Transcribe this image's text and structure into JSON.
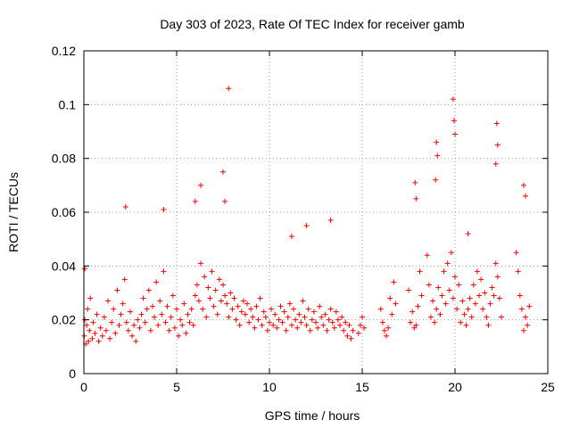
{
  "chart_data": {
    "type": "scatter",
    "title": "Day 303 of 2023, Rate Of TEC Index for receiver gamb",
    "xlabel": "GPS time / hours",
    "ylabel": "ROTI / TECUs",
    "xlim": [
      0,
      25
    ],
    "ylim": [
      0,
      0.12
    ],
    "x_ticks": [
      "0",
      "5",
      "10",
      "15",
      "20",
      "25"
    ],
    "y_ticks": [
      "0",
      "0.02",
      "0.04",
      "0.06",
      "0.08",
      "0.1",
      "0.12"
    ],
    "grid": true,
    "legend": "none",
    "marker": "+",
    "marker_color": "#ff0000",
    "series": [
      {
        "x": [
          0.02,
          0.05,
          0.1,
          0.15,
          0.2,
          0.25,
          0.3,
          0.35,
          0.45,
          0.5,
          0.6,
          0.7,
          0.8,
          0.9,
          1.0,
          1.1,
          1.2,
          1.3,
          1.4,
          1.5,
          1.6,
          1.7,
          1.8,
          1.9,
          2.0,
          2.1,
          2.2,
          2.3,
          2.4,
          2.5,
          2.6,
          2.7,
          2.8,
          2.9,
          3.0,
          3.1,
          3.2,
          3.3,
          3.4,
          3.5,
          3.6,
          3.7,
          3.8,
          3.9,
          4.0,
          4.1,
          4.2,
          4.3,
          4.4,
          4.5,
          4.6,
          4.7,
          4.8,
          4.9,
          5.0,
          5.1,
          5.2,
          5.3,
          5.4,
          5.5,
          5.6,
          5.7,
          5.8,
          5.9,
          6.0,
          6.1,
          6.2,
          6.3,
          6.4,
          6.5,
          6.6,
          6.7,
          6.8,
          6.9,
          7.0,
          7.1,
          7.2,
          7.3,
          7.4,
          7.5,
          7.6,
          7.7,
          7.8,
          7.9,
          8.0,
          8.1,
          8.2,
          8.3,
          8.4,
          8.5,
          8.6,
          8.7,
          8.8,
          8.9,
          9.0,
          9.1,
          9.2,
          9.3,
          9.4,
          9.5,
          9.6,
          9.7,
          9.8,
          9.9,
          10.0,
          10.1,
          10.2,
          10.3,
          10.4,
          10.5,
          10.6,
          10.7,
          10.8,
          10.9,
          11.0,
          11.1,
          11.2,
          11.3,
          11.4,
          11.5,
          11.6,
          11.7,
          11.8,
          11.9,
          12.0,
          12.1,
          12.2,
          12.3,
          12.4,
          12.5,
          12.6,
          12.7,
          12.8,
          12.9,
          13.0,
          13.1,
          13.2,
          13.3,
          13.4,
          13.5,
          13.6,
          13.7,
          13.8,
          13.9,
          14.0,
          14.1,
          14.2,
          14.3,
          14.4,
          14.5,
          14.8,
          14.9,
          15.0,
          15.1,
          16.0,
          16.1,
          16.2,
          16.3,
          16.4,
          16.5,
          16.6,
          16.7,
          16.8,
          17.5,
          17.6,
          17.7,
          17.8,
          17.9,
          18.0,
          18.1,
          18.2,
          18.5,
          18.6,
          18.7,
          18.8,
          18.9,
          19.0,
          19.1,
          19.2,
          19.3,
          19.4,
          19.5,
          19.6,
          19.7,
          19.8,
          19.9,
          20.0,
          20.1,
          20.2,
          20.3,
          20.4,
          20.5,
          20.6,
          20.7,
          20.8,
          20.9,
          21.0,
          21.1,
          21.2,
          21.3,
          21.4,
          21.5,
          21.6,
          21.7,
          21.8,
          21.9,
          22.0,
          22.1,
          22.2,
          22.3,
          22.4,
          22.5,
          23.3,
          23.4,
          23.5,
          23.6,
          23.7,
          23.8,
          23.9,
          24.0,
          7.8,
          7.5,
          7.6,
          19.9,
          19.95,
          20.0,
          19.0,
          19.05,
          22.25,
          22.3,
          22.2,
          18.95,
          13.3,
          6.0,
          4.3,
          2.25,
          23.7,
          23.8,
          17.85,
          17.9,
          20.7,
          0.05,
          6.3,
          11.2,
          12.0
        ],
        "y": [
          0.014,
          0.02,
          0.011,
          0.018,
          0.024,
          0.012,
          0.016,
          0.028,
          0.013,
          0.019,
          0.015,
          0.022,
          0.012,
          0.017,
          0.014,
          0.021,
          0.016,
          0.027,
          0.013,
          0.019,
          0.024,
          0.015,
          0.031,
          0.018,
          0.022,
          0.026,
          0.035,
          0.019,
          0.016,
          0.023,
          0.014,
          0.018,
          0.012,
          0.02,
          0.017,
          0.022,
          0.028,
          0.019,
          0.024,
          0.031,
          0.016,
          0.025,
          0.021,
          0.034,
          0.018,
          0.027,
          0.022,
          0.038,
          0.019,
          0.025,
          0.016,
          0.021,
          0.029,
          0.017,
          0.024,
          0.014,
          0.02,
          0.018,
          0.026,
          0.015,
          0.022,
          0.019,
          0.024,
          0.018,
          0.029,
          0.033,
          0.027,
          0.041,
          0.024,
          0.036,
          0.021,
          0.032,
          0.028,
          0.038,
          0.025,
          0.031,
          0.022,
          0.035,
          0.027,
          0.033,
          0.029,
          0.026,
          0.021,
          0.03,
          0.024,
          0.028,
          0.02,
          0.025,
          0.018,
          0.023,
          0.027,
          0.022,
          0.026,
          0.019,
          0.024,
          0.021,
          0.017,
          0.025,
          0.02,
          0.028,
          0.018,
          0.023,
          0.021,
          0.016,
          0.019,
          0.024,
          0.018,
          0.022,
          0.017,
          0.02,
          0.025,
          0.019,
          0.023,
          0.016,
          0.021,
          0.026,
          0.018,
          0.024,
          0.02,
          0.017,
          0.022,
          0.019,
          0.027,
          0.021,
          0.018,
          0.024,
          0.016,
          0.02,
          0.023,
          0.019,
          0.017,
          0.025,
          0.021,
          0.018,
          0.022,
          0.016,
          0.02,
          0.024,
          0.019,
          0.017,
          0.023,
          0.02,
          0.018,
          0.021,
          0.016,
          0.019,
          0.014,
          0.018,
          0.013,
          0.016,
          0.015,
          0.018,
          0.021,
          0.017,
          0.024,
          0.019,
          0.016,
          0.014,
          0.017,
          0.028,
          0.022,
          0.034,
          0.026,
          0.031,
          0.019,
          0.023,
          0.017,
          0.018,
          0.025,
          0.038,
          0.029,
          0.044,
          0.033,
          0.021,
          0.027,
          0.019,
          0.024,
          0.032,
          0.022,
          0.029,
          0.038,
          0.026,
          0.041,
          0.031,
          0.045,
          0.028,
          0.036,
          0.024,
          0.033,
          0.019,
          0.027,
          0.022,
          0.018,
          0.024,
          0.028,
          0.021,
          0.033,
          0.026,
          0.038,
          0.029,
          0.035,
          0.024,
          0.03,
          0.021,
          0.018,
          0.026,
          0.032,
          0.029,
          0.041,
          0.036,
          0.028,
          0.021,
          0.045,
          0.038,
          0.029,
          0.024,
          0.016,
          0.021,
          0.018,
          0.025,
          0.106,
          0.075,
          0.064,
          0.102,
          0.094,
          0.089,
          0.086,
          0.081,
          0.093,
          0.085,
          0.078,
          0.072,
          0.057,
          0.064,
          0.061,
          0.062,
          0.07,
          0.066,
          0.071,
          0.065,
          0.052,
          0.039,
          0.07,
          0.051,
          0.055
        ]
      }
    ]
  }
}
